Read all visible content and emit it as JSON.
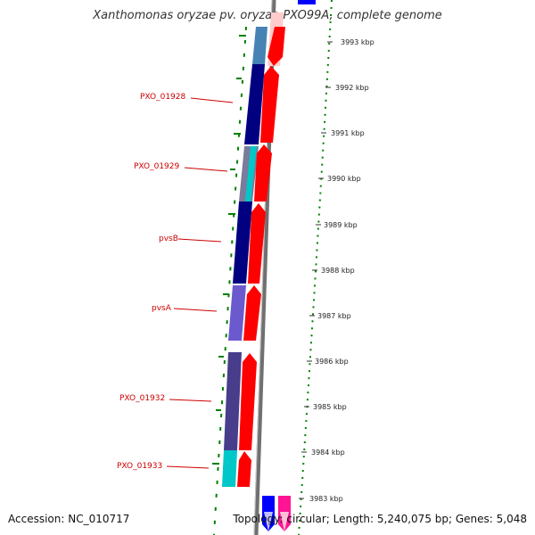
{
  "title": "Xanthomonas oryzae pv. oryzae PXO99A, complete genome",
  "footer": {
    "accession": "Accession: NC_010717",
    "topology": "Topology: circular; Length: 5,240,075 bp; Genes: 5,048"
  },
  "ticks": [
    "3993 kbp",
    "3992 kbp",
    "3991 kbp",
    "3990 kbp",
    "3989 kbp",
    "3988 kbp",
    "3987 kbp",
    "3986 kbp",
    "3985 kbp",
    "3984 kbp",
    "3983 kbp"
  ],
  "gene_labels": [
    "PXO_01928",
    "PXO_01929",
    "pvsB",
    "pvsA",
    "PXO_01932",
    "PXO_01933"
  ],
  "colors": {
    "reverse_strand": "#ff0000",
    "navy_gene": "#000080",
    "slate_gene": "#483d8b",
    "light_blue_gene": "#4682b4",
    "violet_gene": "#6a5acd",
    "cyan_gene": "#00c8c8",
    "backbone": "#808080",
    "gc_dots": "#008000",
    "label_red": "#cc0000"
  }
}
